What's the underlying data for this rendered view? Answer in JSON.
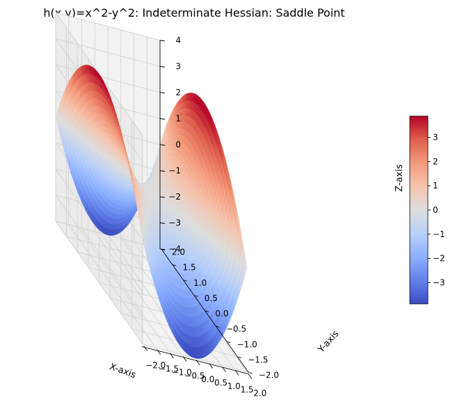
{
  "chart_data": {
    "type": "surface",
    "title": "h(x,y)=x^2-y^2: Indeterminate Hessian: Saddle Point",
    "function": "x^2-y^2",
    "xlabel": "X-axis",
    "ylabel": "Y-axis",
    "zlabel": "Z-axis",
    "xlim": [
      -2,
      2
    ],
    "ylim": [
      -2,
      2
    ],
    "zlim": [
      -4,
      4
    ],
    "grid_resolution": 50,
    "colormap": "coolwarm",
    "grid": true,
    "x_ticks": [
      "−2.0",
      "−1.5",
      "−1.0",
      "−0.5",
      "0.0",
      "0.5",
      "1.0",
      "1.5",
      "2.0"
    ],
    "y_ticks": [
      "−2.0",
      "−1.5",
      "−1.0",
      "−0.5",
      "0.0",
      "0.5",
      "1.0",
      "1.5",
      "2.0"
    ],
    "z_ticks": [
      "−4",
      "−3",
      "−2",
      "−1",
      "0",
      "1",
      "2",
      "3",
      "4"
    ],
    "colorbar": {
      "range": [
        -3.88,
        3.88
      ],
      "ticks": [
        "−3",
        "−2",
        "−1",
        "0",
        "1",
        "2",
        "3"
      ]
    },
    "colors": {
      "cool": "#3b4cc0",
      "mid": "#dddddd",
      "warm": "#b40426"
    }
  }
}
